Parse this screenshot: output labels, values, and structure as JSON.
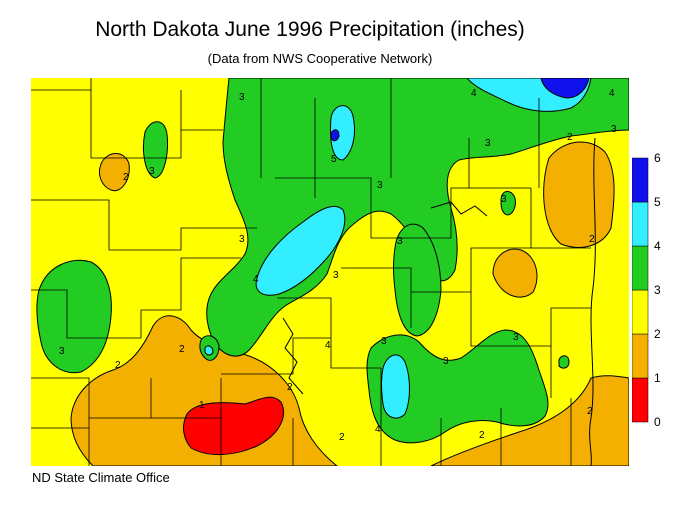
{
  "title": "North Dakota June 1996 Precipitation (inches)",
  "subtitle": "(Data from NWS Cooperative Network)",
  "credit": "ND State Climate Office",
  "legend": {
    "classes": [
      {
        "min": 0,
        "max": 1,
        "color": "#ff0000"
      },
      {
        "min": 1,
        "max": 2,
        "color": "#f4b000"
      },
      {
        "min": 2,
        "max": 3,
        "color": "#ffff00"
      },
      {
        "min": 3,
        "max": 4,
        "color": "#22cc22"
      },
      {
        "min": 4,
        "max": 5,
        "color": "#33eeff"
      },
      {
        "min": 5,
        "max": 6,
        "color": "#1111ee"
      }
    ],
    "tick_labels": [
      "0",
      "1",
      "2",
      "3",
      "4",
      "5",
      "6"
    ]
  },
  "contour_labels": [
    "3",
    "3",
    "3",
    "2",
    "2",
    "2",
    "2",
    "2",
    "2",
    "2",
    "3",
    "3",
    "3",
    "3",
    "3",
    "3",
    "3",
    "3",
    "3",
    "3",
    "4",
    "4",
    "4",
    "4",
    "4",
    "5",
    "1",
    "2",
    "2"
  ]
}
